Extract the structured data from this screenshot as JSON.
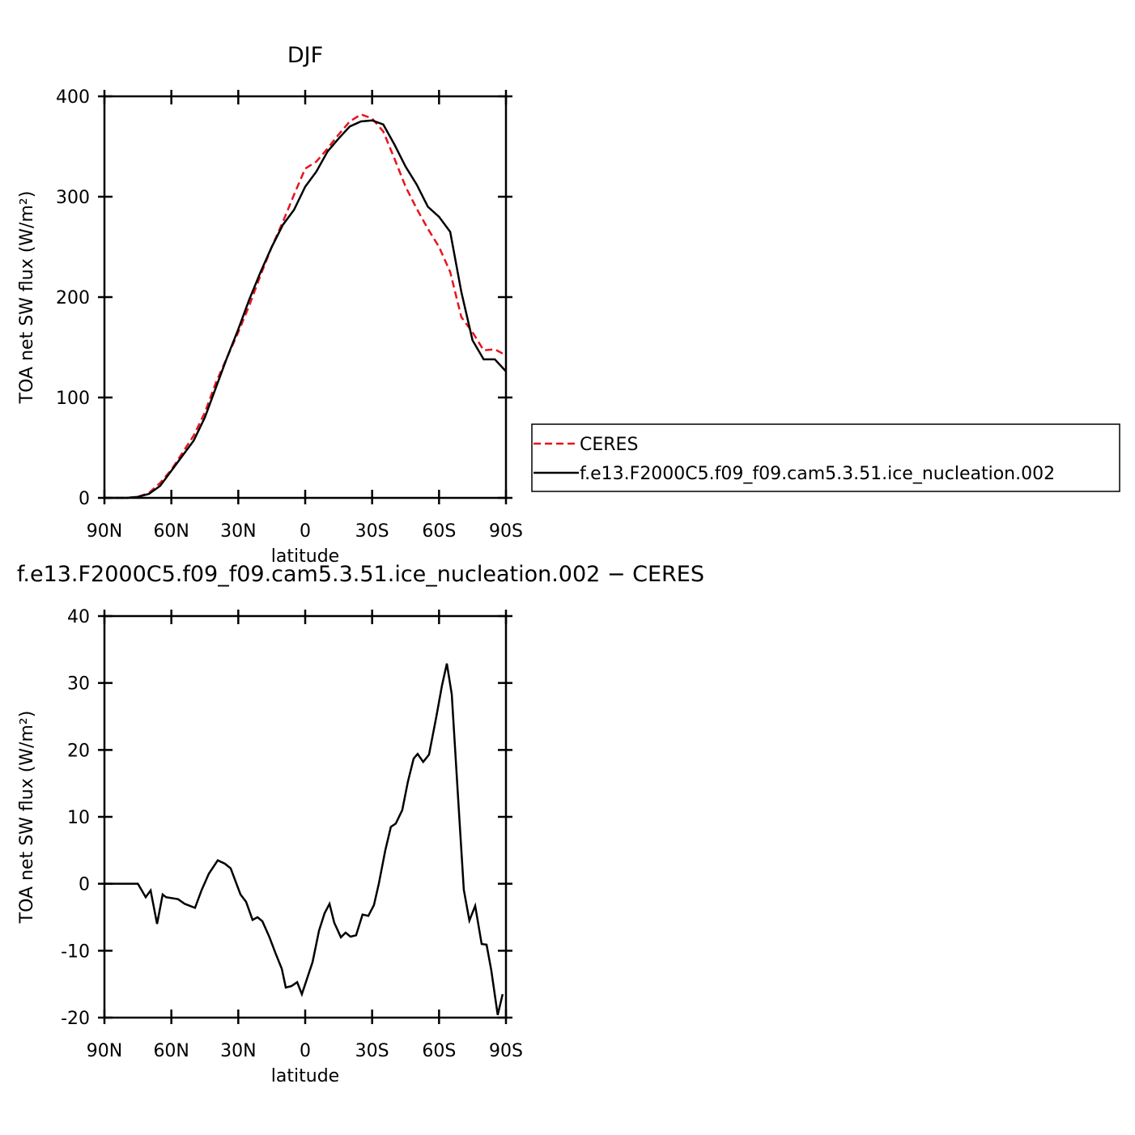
{
  "chart_data": [
    {
      "type": "line",
      "title": "DJF",
      "xlabel": "latitude",
      "ylabel": "TOA net SW flux (W/m²)",
      "x": [
        90,
        85,
        80,
        75,
        70,
        65,
        60,
        55,
        50,
        45,
        40,
        35,
        30,
        25,
        20,
        15,
        10,
        5,
        0,
        -5,
        -10,
        -15,
        -20,
        -25,
        -30,
        -35,
        -40,
        -45,
        -50,
        -55,
        -60,
        -65,
        -70,
        -75,
        -80,
        -85,
        -90
      ],
      "series": [
        {
          "name": "CERES",
          "color": "#e8141c",
          "linestyle": "dashed",
          "values": [
            0,
            0,
            0,
            1,
            5,
            15,
            28,
            45,
            62,
            85,
            115,
            140,
            165,
            192,
            222,
            250,
            275,
            302,
            328,
            335,
            348,
            362,
            375,
            382,
            378,
            365,
            338,
            310,
            288,
            268,
            250,
            225,
            180,
            165,
            147,
            148,
            142
          ]
        },
        {
          "name": "f.e13.F2000C5.f09_f09.cam5.3.51.ice_nucleation.002",
          "color": "#000000",
          "linestyle": "solid",
          "values": [
            0,
            0,
            0,
            1,
            4,
            12,
            27,
            42,
            57,
            80,
            110,
            140,
            168,
            198,
            225,
            250,
            272,
            287,
            310,
            325,
            345,
            358,
            370,
            375,
            376,
            372,
            352,
            330,
            312,
            290,
            280,
            265,
            205,
            157,
            138,
            138,
            126
          ]
        }
      ],
      "xlim": [
        90,
        -90
      ],
      "xticks": [
        {
          "value": 90,
          "label": "90N"
        },
        {
          "value": 60,
          "label": "60N"
        },
        {
          "value": 30,
          "label": "30N"
        },
        0,
        {
          "value": -30,
          "label": "30S"
        },
        {
          "value": -60,
          "label": "60S"
        },
        {
          "value": -90,
          "label": "90S"
        }
      ],
      "ylim": [
        0,
        400
      ],
      "yticks": [
        0,
        100,
        200,
        300,
        400
      ],
      "legend": "outside-right"
    },
    {
      "type": "line",
      "title": "f.e13.F2000C5.f09_f09.cam5.3.51.ice_nucleation.002 − CERES",
      "xlabel": "latitude",
      "ylabel": "TOA net SW flux (W/m²)",
      "x": [
        90,
        75,
        71.5,
        69.3,
        66.4,
        63.9,
        62.4,
        57,
        54,
        49.4,
        46.5,
        43.2,
        39.2,
        36,
        33.4,
        29,
        26.5,
        23.6,
        21.4,
        19.2,
        16,
        13.4,
        10.5,
        8.7,
        6.2,
        3.6,
        1.5,
        -3.3,
        -6.2,
        -8.7,
        -10.9,
        -13,
        -16,
        -18.1,
        -20.3,
        -22.8,
        -25.7,
        -28.3,
        -30.8,
        -33,
        -35.9,
        -38.4,
        -40.6,
        -43.5,
        -46,
        -48.6,
        -50.4,
        -52.9,
        -55.5,
        -58.8,
        -61.3,
        -63.5,
        -65.7,
        -68.6,
        -71.1,
        -73.6,
        -76.2,
        -79.1,
        -81.3,
        -83.4,
        -86.3,
        -88.5
      ],
      "series": [
        {
          "color": "#000000",
          "linestyle": "solid",
          "values": [
            0,
            0,
            -2,
            -1,
            -6,
            -1.6,
            -2,
            -2.3,
            -3,
            -3.6,
            -1,
            1.5,
            3.5,
            3,
            2.3,
            -1.6,
            -2.7,
            -5.4,
            -5,
            -5.6,
            -8,
            -10.3,
            -12.7,
            -15.5,
            -15.3,
            -14.7,
            -16.5,
            -11.7,
            -7,
            -4.4,
            -3,
            -5.8,
            -8,
            -7.3,
            -7.9,
            -7.7,
            -4.6,
            -4.8,
            -3.2,
            0,
            5,
            8.5,
            9,
            11,
            15.2,
            18.7,
            19.4,
            18.2,
            19.3,
            25,
            29.6,
            32.9,
            28.3,
            12.5,
            -0.9,
            -5.5,
            -3.3,
            -9,
            -9.1,
            -12.9,
            -19.6,
            -16.5
          ]
        }
      ],
      "xlim": [
        90,
        -90
      ],
      "xticks": [
        {
          "value": 90,
          "label": "90N"
        },
        {
          "value": 60,
          "label": "60N"
        },
        {
          "value": 30,
          "label": "30N"
        },
        0,
        {
          "value": -30,
          "label": "30S"
        },
        {
          "value": -60,
          "label": "60S"
        },
        {
          "value": -90,
          "label": "90S"
        }
      ],
      "ylim": [
        -20,
        40
      ],
      "yticks": [
        -20,
        -10,
        0,
        10,
        20,
        30,
        40
      ]
    }
  ]
}
